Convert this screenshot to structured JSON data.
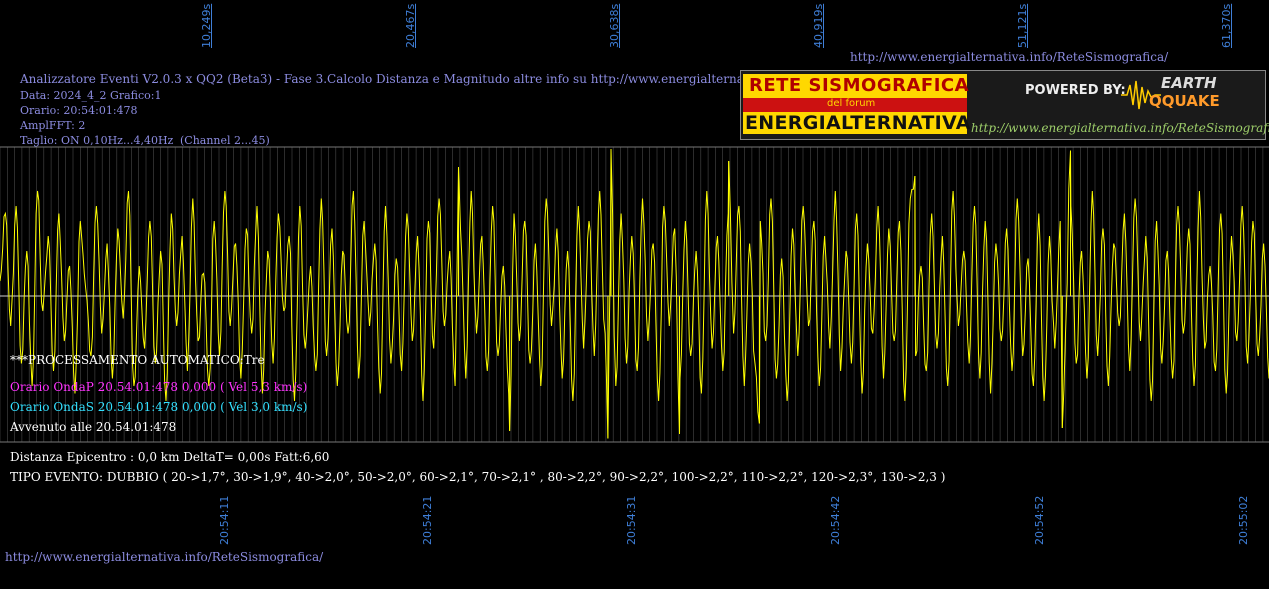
{
  "header": {
    "top_url": "http://www.energialternativa.info/ReteSismografica/",
    "title": "Analizzatore Eventi V2.0.3 x QQ2 (Beta3) - Fase 3.Calcolo Distanza e Magnitudo altre info su http://www.energialternativa.info/ReteSism",
    "data": "Data: 2024_4_2 Grafico:1",
    "orario": "Orario: 20:54:01:478",
    "amplfft": "AmplFFT: 2",
    "taglio": "Taglio: ON 0,10Hz...4,40Hz",
    "channel": "(Channel 2...45)"
  },
  "logo": {
    "line1": "RETE SISMOGRAFICA",
    "line2": "del forum",
    "line3": "ENERGIALTERNATIVA",
    "powered": "POWERED BY:",
    "earth": "EARTH",
    "qquake": "QQUAKE",
    "url": "http://www.energialternativa.info/ReteSismografica"
  },
  "info": {
    "processing": "***PROCESSAMENTO AUTOMATICO:Tre",
    "onda_p": "Orario OndaP 20.54.01:478  0,000 ( Vel 5,3 km/s)",
    "onda_s": "Orario OndaS 20.54.01:478  0,000 ( Vel 3,0 km/s)",
    "avvenuto": "Avvenuto alle 20.54.01:478",
    "distanza": "Distanza Epicentro : 0,0 km DeltaT= 0,00s  Fatt:6,60",
    "tipo": "TIPO EVENTO: DUBBIO ( 20->1,7°, 30->1,9°, 40->2,0°, 50->2,0°, 60->2,1°, 70->2,1° , 80->2,2°, 90->2,2°, 100->2,2°, 110->2,2°, 120->2,3°, 130->2,3 )"
  },
  "footer": {
    "url": "http://www.energialternativa.info/ReteSismografica/"
  },
  "colors": {
    "background": "#000000",
    "trace": "#ffff00",
    "grid": "#4a4a4a",
    "axis_label": "#3f7fd8",
    "header_text": "#8c8ce0",
    "onda_p": "#ff33ff",
    "onda_s": "#33e0ff"
  },
  "chart_data": {
    "type": "line",
    "title": "",
    "xlabel": "",
    "ylabel": "",
    "x_seconds_ticks": [
      "10,249s",
      "20,467s",
      "30,638s",
      "40,919s",
      "51,121s",
      "61,370s"
    ],
    "x_time_ticks": [
      "20:54:11",
      "20:54:21",
      "20:54:31",
      "20:54:42",
      "20:54:52",
      "20:55:02"
    ],
    "xlim": [
      0,
      62
    ],
    "ylim": [
      -1,
      1
    ],
    "grid": true,
    "series": [
      {
        "values": [
          0.1,
          0.55,
          -0.2,
          0.6,
          -0.45,
          0.3,
          -0.6,
          0.7,
          -0.1,
          0.4,
          -0.5,
          0.55,
          -0.3,
          0.2,
          -0.65,
          0.5,
          0.05,
          -0.4,
          0.6,
          -0.25,
          0.35,
          -0.55,
          0.45,
          -0.15,
          0.7,
          -0.6,
          0.2,
          -0.35,
          0.5,
          -0.45,
          0.3,
          -0.7,
          0.55,
          -0.2,
          0.4,
          -0.5,
          0.65,
          -0.3,
          0.15,
          -0.6,
          0.5,
          -0.4,
          0.7,
          -0.2,
          0.35,
          -0.55,
          0.45,
          -0.25,
          0.6,
          -0.65,
          0.3,
          -0.45,
          0.55,
          -0.1,
          0.4,
          -0.7,
          0.6,
          -0.35,
          0.2,
          -0.5,
          0.65,
          -0.4,
          0.45,
          -0.6,
          0.3,
          -0.25,
          0.7,
          -0.55,
          0.5,
          -0.2,
          0.35,
          -0.65,
          0.6,
          -0.45,
          0.25,
          -0.5,
          0.55,
          -0.3,
          0.4,
          -0.7,
          0.5,
          -0.35,
          0.65,
          -0.2,
          0.3,
          -0.6,
          0.45,
          -0.55,
          0.7,
          -0.25,
          0.4,
          -0.5,
          0.6,
          -0.4,
          0.2,
          -0.65,
          0.55,
          -0.3,
          0.5,
          -0.45,
          0.35,
          -0.6,
          0.65,
          -0.2,
          0.45,
          -0.55,
          0.3,
          -0.7,
          0.6,
          -0.35,
          0.5,
          -0.4,
          0.7,
          -0.25,
          0.25,
          -0.6,
          0.55,
          -0.45,
          0.4,
          -0.5,
          0.65,
          -0.3,
          0.35,
          -0.7,
          0.6,
          -0.2,
          0.45,
          -0.55,
          0.5,
          -0.4,
          0.3,
          -0.65,
          0.7,
          -0.35,
          0.4,
          -0.5,
          0.55,
          -0.25,
          0.6,
          -0.6,
          0.35,
          -0.45,
          0.5,
          -0.3,
          0.65,
          -0.55,
          0.25,
          -0.7,
          0.45,
          -0.4,
          0.6,
          -0.2,
          0.5,
          -0.6,
          0.4,
          -0.35,
          0.7,
          -0.5,
          0.3,
          -0.45,
          0.55,
          -0.65,
          0.35,
          -0.25,
          0.6,
          -0.55,
          0.45,
          -0.3,
          0.5,
          -0.7,
          0.65,
          -0.4,
          0.2,
          -0.5,
          0.55,
          -0.35,
          0.4,
          -0.6,
          0.7,
          -0.2,
          0.3,
          -0.45,
          0.6,
          -0.55,
          0.5,
          -0.65,
          0.35,
          -0.3,
          0.45,
          -0.5,
          0.65,
          -0.4,
          0.25,
          -0.6,
          0.55,
          -0.7,
          0.4,
          -0.35,
          0.5,
          -0.25,
          0.6,
          -0.45,
          0.3,
          -0.55,
          0.7,
          -0.4,
          0.45,
          -0.6,
          0.35,
          -0.2,
          0.55,
          -0.5,
          0.65,
          -0.3,
          0.4,
          -0.7,
          0.5,
          -0.45,
          0.3,
          -0.55,
          0.6,
          -0.25,
          0.45,
          -0.6,
          0.7,
          -0.35,
          0.2,
          -0.5,
          0.55,
          -0.65,
          0.4,
          -0.3,
          0.6,
          -0.45,
          0.5,
          -0.4,
          0.35,
          -0.55
        ]
      }
    ],
    "peaks": [
      {
        "x": 29.85,
        "y": 0.98
      },
      {
        "x": 29.7,
        "y": -0.95
      },
      {
        "x": 24.9,
        "y": -0.9
      },
      {
        "x": 33.2,
        "y": -0.92
      },
      {
        "x": 35.6,
        "y": 0.9
      },
      {
        "x": 52.3,
        "y": 0.97
      },
      {
        "x": 51.9,
        "y": -0.88
      },
      {
        "x": 37.1,
        "y": -0.85
      },
      {
        "x": 22.4,
        "y": 0.86
      },
      {
        "x": 44.7,
        "y": 0.8
      }
    ]
  }
}
